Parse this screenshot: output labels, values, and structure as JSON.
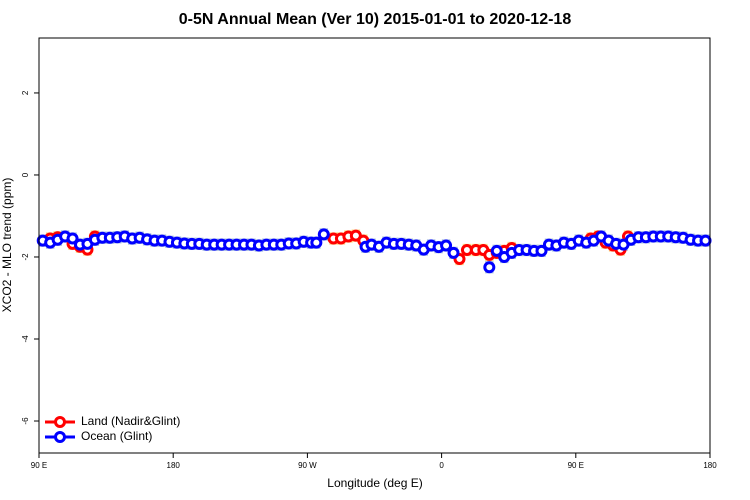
{
  "chart_data": {
    "type": "scatter",
    "title": "0-5N Annual Mean (Ver 10)   2015-01-01 to 2020-12-18",
    "x_label": "Longitude (deg E)",
    "y_label": "XCO2 - MLO trend (ppm)",
    "xlim": [
      90,
      540
    ],
    "ylim": [
      -6.78,
      3.34
    ],
    "xticks": [
      {
        "value": 90,
        "label": "90 E"
      },
      180,
      {
        "value": 270,
        "label": "90 W"
      },
      {
        "value": 360,
        "label": "0"
      },
      {
        "value": 450,
        "label": "90 E"
      },
      180
    ],
    "yticks": [
      2,
      0,
      -2,
      -4,
      -6
    ],
    "legend": "bottom-left",
    "series": [
      {
        "name": "Land (Nadir&Glint)",
        "color": "#ff0000",
        "band_color": "#fcd98a",
        "x": [
          97.5,
          102.5,
          112.5,
          117.5,
          122.5,
          127.5,
          287.5,
          292.5,
          297.5,
          302.5,
          307.5,
          372,
          377,
          383,
          388,
          392,
          397,
          402,
          407,
          460,
          465,
          470,
          475,
          480,
          485
        ],
        "values": [
          -1.55,
          -1.52,
          -1.68,
          -1.75,
          -1.82,
          -1.5,
          -1.55,
          -1.55,
          -1.5,
          -1.48,
          -1.6,
          -2.05,
          -1.83,
          -1.83,
          -1.83,
          -1.95,
          -1.9,
          -1.85,
          -1.78,
          -1.55,
          -1.5,
          -1.65,
          -1.72,
          -1.82,
          -1.5
        ]
      },
      {
        "name": "Ocean (Glint)",
        "color": "#0000ff",
        "band_color": "#a8bde0",
        "x": [
          92.5,
          97.5,
          102.5,
          107.5,
          112.5,
          117.5,
          122.5,
          127.5,
          132.5,
          137.5,
          142.5,
          147.5,
          152.5,
          157.5,
          162.5,
          167.5,
          172.5,
          177.5,
          182.5,
          187.5,
          192.5,
          197.5,
          202.5,
          207.5,
          212.5,
          217.5,
          222.5,
          227.5,
          232.5,
          237.5,
          242.5,
          247.5,
          252.5,
          257.5,
          262.5,
          267.5,
          272.5,
          276,
          281,
          309,
          313,
          318,
          323,
          328,
          333,
          338,
          343,
          348,
          353,
          358,
          363,
          368,
          392,
          397,
          402,
          407,
          412,
          417,
          422,
          427,
          432,
          437,
          442,
          447,
          452,
          457,
          462,
          467,
          472,
          477,
          482,
          487,
          492,
          497,
          502,
          507,
          512,
          517,
          522,
          527,
          532,
          537
        ],
        "values": [
          -1.6,
          -1.65,
          -1.58,
          -1.5,
          -1.55,
          -1.7,
          -1.68,
          -1.58,
          -1.53,
          -1.53,
          -1.52,
          -1.5,
          -1.55,
          -1.53,
          -1.57,
          -1.6,
          -1.6,
          -1.63,
          -1.65,
          -1.67,
          -1.68,
          -1.68,
          -1.7,
          -1.7,
          -1.7,
          -1.7,
          -1.7,
          -1.7,
          -1.7,
          -1.72,
          -1.7,
          -1.7,
          -1.7,
          -1.67,
          -1.67,
          -1.63,
          -1.65,
          -1.65,
          -1.45,
          -1.75,
          -1.7,
          -1.75,
          -1.65,
          -1.68,
          -1.68,
          -1.7,
          -1.72,
          -1.82,
          -1.72,
          -1.76,
          -1.72,
          -1.9,
          -2.25,
          -1.85,
          -2.0,
          -1.9,
          -1.83,
          -1.83,
          -1.85,
          -1.85,
          -1.7,
          -1.72,
          -1.65,
          -1.68,
          -1.6,
          -1.65,
          -1.6,
          -1.5,
          -1.6,
          -1.68,
          -1.7,
          -1.58,
          -1.52,
          -1.52,
          -1.5,
          -1.5,
          -1.5,
          -1.52,
          -1.53,
          -1.58,
          -1.6,
          -1.6
        ]
      }
    ]
  }
}
